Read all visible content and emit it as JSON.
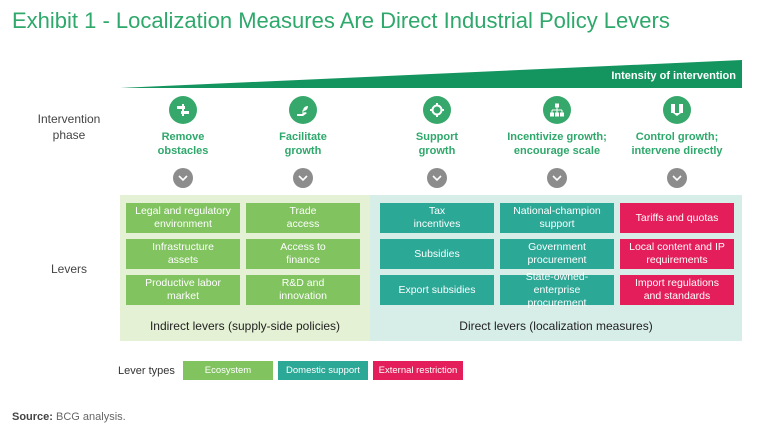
{
  "title": "Exhibit 1 - Localization Measures Are Direct Industrial Policy Levers",
  "intensity_label": "Intensity of intervention",
  "row_labels": {
    "phase_line1": "Intervention",
    "phase_line2": "phase",
    "levers": "Levers"
  },
  "phases": [
    {
      "line1": "Remove",
      "line2": "obstacles",
      "icon": "tools-icon"
    },
    {
      "line1": "Facilitate",
      "line2": "growth",
      "icon": "hand-plant-icon"
    },
    {
      "line1": "Support",
      "line2": "growth",
      "icon": "gear-icon"
    },
    {
      "line1": "Incentivize growth;",
      "line2": "encourage scale",
      "icon": "org-chart-icon"
    },
    {
      "line1": "Control growth;",
      "line2": "intervene directly",
      "icon": "handshake-icon"
    }
  ],
  "levers": {
    "indirect_label": "Indirect levers (supply-side policies)",
    "direct_label": "Direct levers (localization measures)",
    "cells": [
      [
        {
          "line1": "Legal and regulatory",
          "line2": "environment",
          "type": "ecosystem"
        },
        {
          "line1": "Trade",
          "line2": "access",
          "type": "ecosystem"
        },
        {
          "line1": "Tax",
          "line2": "incentives",
          "type": "domestic"
        },
        {
          "line1": "National-champion",
          "line2": "support",
          "type": "domestic"
        },
        {
          "line1": "Tariffs and quotas",
          "line2": "",
          "type": "external"
        }
      ],
      [
        {
          "line1": "Infrastructure",
          "line2": "assets",
          "type": "ecosystem"
        },
        {
          "line1": "Access to",
          "line2": "finance",
          "type": "ecosystem"
        },
        {
          "line1": "Subsidies",
          "line2": "",
          "type": "domestic"
        },
        {
          "line1": "Government",
          "line2": "procurement",
          "type": "domestic"
        },
        {
          "line1": "Local content and IP",
          "line2": "requirements",
          "type": "external"
        }
      ],
      [
        {
          "line1": "Productive labor",
          "line2": "market",
          "type": "ecosystem"
        },
        {
          "line1": "R&D and",
          "line2": "innovation",
          "type": "ecosystem"
        },
        {
          "line1": "Export subsidies",
          "line2": "",
          "type": "domestic"
        },
        {
          "line1": "State-owned-enterprise",
          "line2": "procurement",
          "type": "domestic"
        },
        {
          "line1": "Import regulations",
          "line2": "and standards",
          "type": "external"
        }
      ]
    ]
  },
  "legend": {
    "title": "Lever types",
    "ecosystem": "Ecosystem",
    "domestic": "Domestic support",
    "external": "External restriction"
  },
  "colors": {
    "ecosystem": "#80c35f",
    "domestic": "#2ba896",
    "external": "#e41e5a",
    "accent": "#2ea86b"
  },
  "source": {
    "label": "Source:",
    "text": "BCG analysis."
  }
}
